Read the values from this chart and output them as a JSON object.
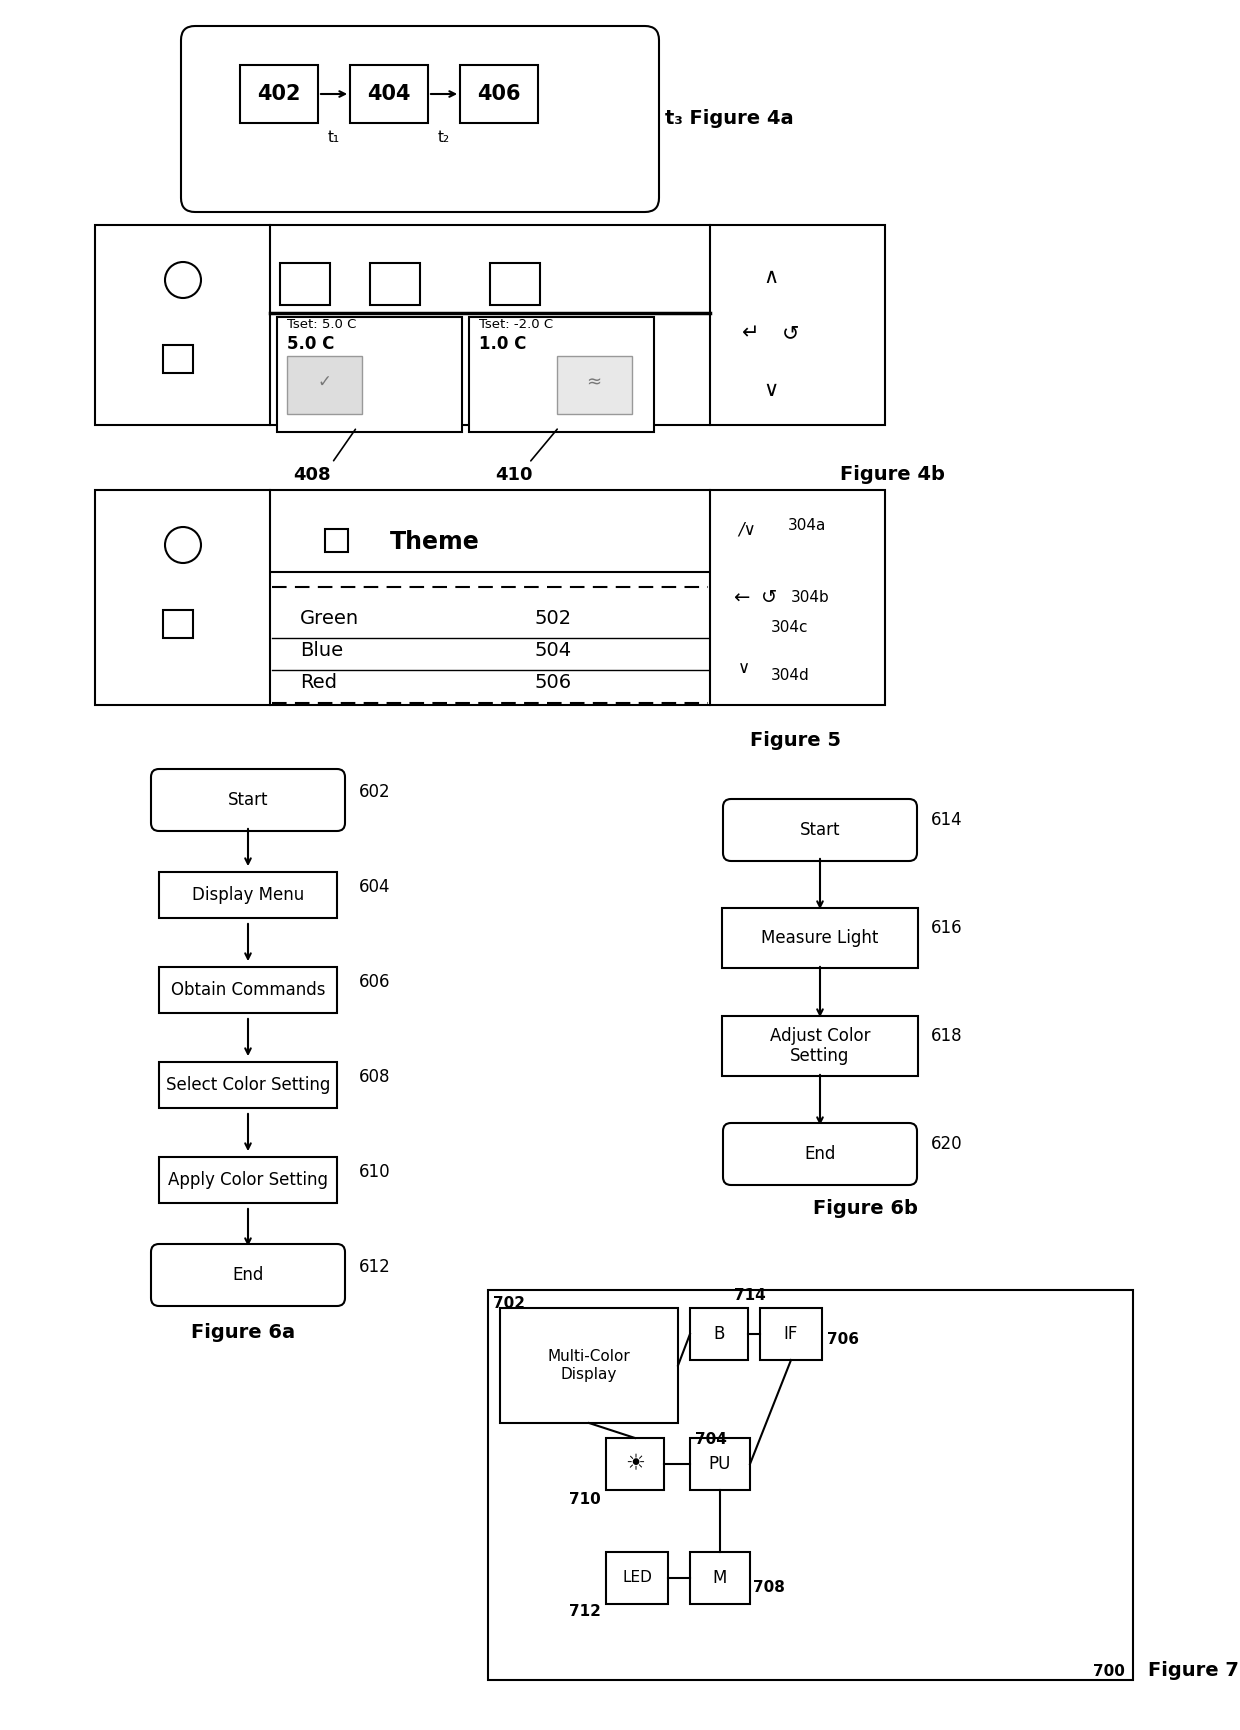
{
  "bg_color": "#ffffff",
  "fig4a_boxes": [
    "402",
    "404",
    "406"
  ],
  "fig4a_title": "t₃ Figure 4a",
  "fig4b_title": "Figure 4b",
  "fig5_title": "Figure 5",
  "fig5_rows": [
    {
      "label": "Green",
      "num": "502"
    },
    {
      "label": "Blue",
      "num": "504"
    },
    {
      "label": "Red",
      "num": "506"
    }
  ],
  "fig6a_title": "Figure 6a",
  "fig6a_nodes": [
    {
      "label": "Start",
      "shape": "rounded",
      "num": "602"
    },
    {
      "label": "Display Menu",
      "shape": "rect",
      "num": "604"
    },
    {
      "label": "Obtain Commands",
      "shape": "rect",
      "num": "606"
    },
    {
      "label": "Select Color Setting",
      "shape": "rect",
      "num": "608"
    },
    {
      "label": "Apply Color Setting",
      "shape": "rect",
      "num": "610"
    },
    {
      "label": "End",
      "shape": "rounded",
      "num": "612"
    }
  ],
  "fig6b_title": "Figure 6b",
  "fig6b_nodes": [
    {
      "label": "Start",
      "shape": "rounded",
      "num": "614"
    },
    {
      "label": "Measure Light",
      "shape": "rect",
      "num": "616"
    },
    {
      "label": "Adjust Color\nSetting",
      "shape": "rect",
      "num": "618"
    },
    {
      "label": "End",
      "shape": "rounded",
      "num": "620"
    }
  ],
  "fig7_title": "Figure 7"
}
